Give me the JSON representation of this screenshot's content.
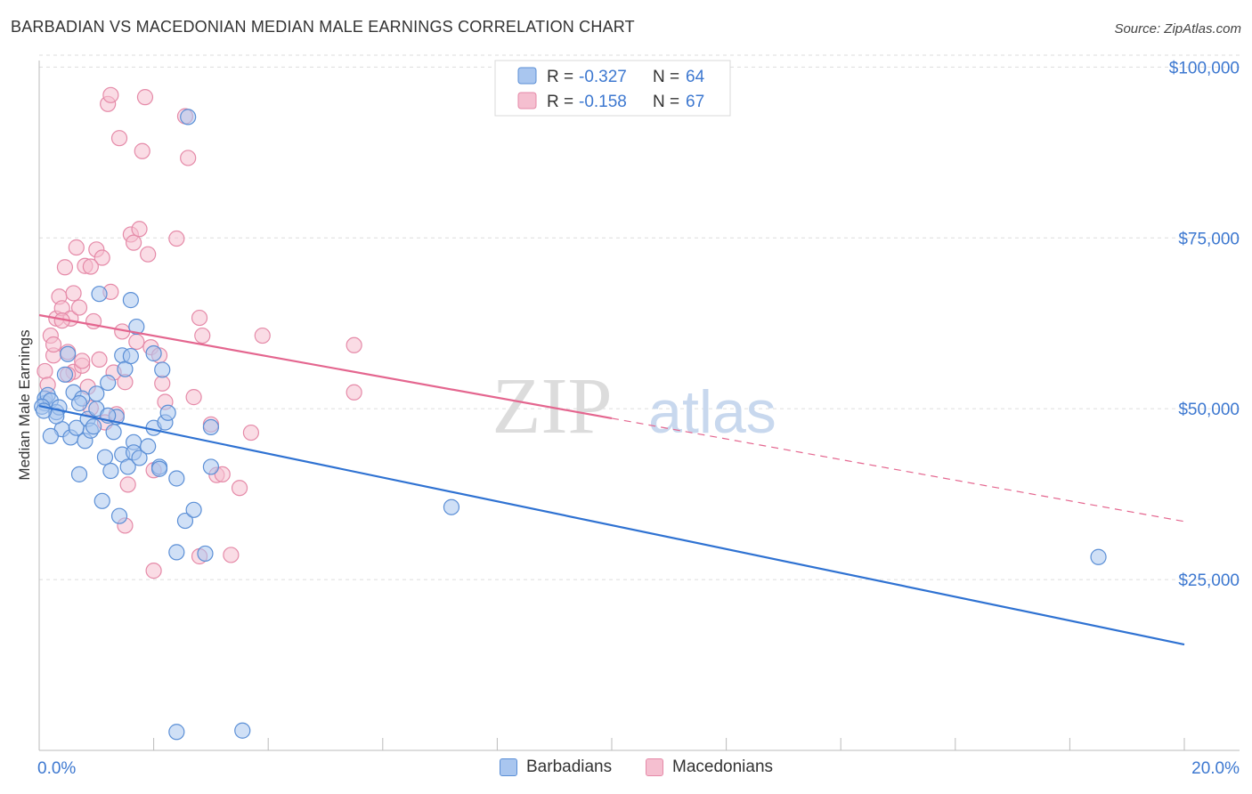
{
  "title": "BARBADIAN VS MACEDONIAN MEDIAN MALE EARNINGS CORRELATION CHART",
  "source": "Source: ZipAtlas.com",
  "watermark": {
    "zip": "ZIP",
    "atlas": "atlas"
  },
  "colors": {
    "blue_fill": "#a9c6ef",
    "blue_stroke": "#5b8fd6",
    "blue_line": "#2f72d2",
    "pink_fill": "#f5bfd0",
    "pink_stroke": "#e58aa8",
    "pink_line": "#e4668f",
    "axis_label": "#3d78d0",
    "grid": "#dddddd"
  },
  "legend_box": {
    "rows": [
      {
        "r_label": "R = ",
        "r_value": "-0.327",
        "n_label": "N = ",
        "n_value": "64",
        "series": "blue"
      },
      {
        "r_label": "R = ",
        "r_value": "-0.158",
        "n_label": "N = ",
        "n_value": "67",
        "series": "pink"
      }
    ]
  },
  "legend_bottom": {
    "items": [
      "Barbadians",
      "Macedonians"
    ]
  },
  "chart_data": {
    "type": "scatter",
    "title": "BARBADIAN VS MACEDONIAN MEDIAN MALE EARNINGS CORRELATION CHART",
    "xlabel": "",
    "ylabel": "Median Male Earnings",
    "xlim": [
      0,
      20
    ],
    "ylim": [
      0,
      102000
    ],
    "x_tick_labels": [
      {
        "value": 0,
        "label": "0.0%"
      },
      {
        "value": 20,
        "label": "20.0%"
      }
    ],
    "y_ticks": [
      {
        "value": 25000,
        "label": "$25,000"
      },
      {
        "value": 50000,
        "label": "$50,000"
      },
      {
        "value": 75000,
        "label": "$75,000"
      },
      {
        "value": 100000,
        "label": "$100,000"
      }
    ],
    "series": [
      {
        "name": "Barbadians",
        "r": -0.327,
        "n": 64,
        "trend": {
          "x0": 0.0,
          "y0": 50400,
          "x1": 20.0,
          "y1": 15500,
          "solid_until": 20.0
        },
        "points": [
          [
            0.1,
            50800
          ],
          [
            0.1,
            51500
          ],
          [
            0.15,
            52000
          ],
          [
            0.2,
            51200
          ],
          [
            0.3,
            49500
          ],
          [
            0.35,
            50200
          ],
          [
            0.4,
            47000
          ],
          [
            0.45,
            55000
          ],
          [
            0.5,
            58000
          ],
          [
            0.55,
            45800
          ],
          [
            0.6,
            52400
          ],
          [
            0.65,
            47200
          ],
          [
            0.7,
            40400
          ],
          [
            0.75,
            51500
          ],
          [
            0.8,
            45300
          ],
          [
            0.85,
            48500
          ],
          [
            0.9,
            46800
          ],
          [
            0.95,
            47400
          ],
          [
            1.0,
            50000
          ],
          [
            1.0,
            52200
          ],
          [
            1.05,
            66800
          ],
          [
            1.1,
            36500
          ],
          [
            1.15,
            42900
          ],
          [
            1.2,
            53800
          ],
          [
            1.25,
            40900
          ],
          [
            1.3,
            46600
          ],
          [
            1.35,
            48800
          ],
          [
            1.4,
            34300
          ],
          [
            1.45,
            57800
          ],
          [
            1.45,
            43300
          ],
          [
            1.5,
            55800
          ],
          [
            1.55,
            41500
          ],
          [
            1.6,
            57700
          ],
          [
            1.6,
            65900
          ],
          [
            1.65,
            45100
          ],
          [
            1.65,
            43600
          ],
          [
            1.7,
            62000
          ],
          [
            1.75,
            42800
          ],
          [
            1.9,
            44500
          ],
          [
            2.0,
            58100
          ],
          [
            2.0,
            47200
          ],
          [
            2.1,
            41500
          ],
          [
            2.15,
            55700
          ],
          [
            2.2,
            48000
          ],
          [
            2.25,
            49400
          ],
          [
            2.4,
            39800
          ],
          [
            2.55,
            33600
          ],
          [
            2.6,
            92700
          ],
          [
            2.7,
            35200
          ],
          [
            3.0,
            47300
          ],
          [
            3.0,
            41500
          ],
          [
            7.2,
            35600
          ],
          [
            18.5,
            28300
          ],
          [
            2.4,
            29000
          ],
          [
            2.9,
            28800
          ],
          [
            2.1,
            41200
          ],
          [
            2.4,
            2700
          ],
          [
            3.55,
            2900
          ],
          [
            0.3,
            48900
          ],
          [
            0.7,
            50800
          ],
          [
            1.2,
            49000
          ],
          [
            0.2,
            46000
          ],
          [
            0.05,
            50300
          ],
          [
            0.08,
            49700
          ]
        ]
      },
      {
        "name": "Macedonians",
        "r": -0.158,
        "n": 67,
        "trend": {
          "x0": 0.0,
          "y0": 63700,
          "x1": 20.0,
          "y1": 33500,
          "solid_until": 10.0
        },
        "points": [
          [
            0.1,
            55500
          ],
          [
            0.15,
            53500
          ],
          [
            0.2,
            60700
          ],
          [
            0.25,
            57800
          ],
          [
            0.3,
            63200
          ],
          [
            0.35,
            66400
          ],
          [
            0.4,
            64700
          ],
          [
            0.45,
            70700
          ],
          [
            0.5,
            58300
          ],
          [
            0.55,
            63200
          ],
          [
            0.6,
            55400
          ],
          [
            0.65,
            73600
          ],
          [
            0.7,
            64800
          ],
          [
            0.75,
            56300
          ],
          [
            0.8,
            70900
          ],
          [
            0.85,
            53200
          ],
          [
            0.9,
            50100
          ],
          [
            0.95,
            62800
          ],
          [
            1.0,
            73300
          ],
          [
            1.05,
            57200
          ],
          [
            1.1,
            72100
          ],
          [
            1.15,
            48000
          ],
          [
            1.2,
            94600
          ],
          [
            1.25,
            95900
          ],
          [
            1.3,
            55300
          ],
          [
            1.35,
            49200
          ],
          [
            1.4,
            89600
          ],
          [
            1.45,
            61300
          ],
          [
            1.5,
            53900
          ],
          [
            1.55,
            38900
          ],
          [
            1.6,
            75500
          ],
          [
            1.65,
            74300
          ],
          [
            1.7,
            59800
          ],
          [
            1.75,
            76300
          ],
          [
            1.8,
            87700
          ],
          [
            1.85,
            95600
          ],
          [
            1.9,
            72600
          ],
          [
            1.95,
            59000
          ],
          [
            2.0,
            41000
          ],
          [
            2.1,
            57800
          ],
          [
            2.15,
            53700
          ],
          [
            2.2,
            51000
          ],
          [
            2.4,
            74900
          ],
          [
            2.55,
            92800
          ],
          [
            2.6,
            86700
          ],
          [
            2.7,
            51700
          ],
          [
            2.8,
            63300
          ],
          [
            2.85,
            60700
          ],
          [
            3.0,
            47700
          ],
          [
            3.1,
            40300
          ],
          [
            3.35,
            28600
          ],
          [
            3.5,
            38400
          ],
          [
            3.7,
            46500
          ],
          [
            3.9,
            60700
          ],
          [
            5.5,
            52400
          ],
          [
            5.5,
            59300
          ],
          [
            2.0,
            26300
          ],
          [
            1.5,
            32900
          ],
          [
            2.8,
            28400
          ],
          [
            3.2,
            40400
          ],
          [
            0.4,
            62900
          ],
          [
            0.6,
            66900
          ],
          [
            0.9,
            70800
          ],
          [
            1.25,
            67100
          ],
          [
            0.25,
            59400
          ],
          [
            0.5,
            55000
          ],
          [
            0.75,
            57000
          ]
        ]
      }
    ]
  }
}
